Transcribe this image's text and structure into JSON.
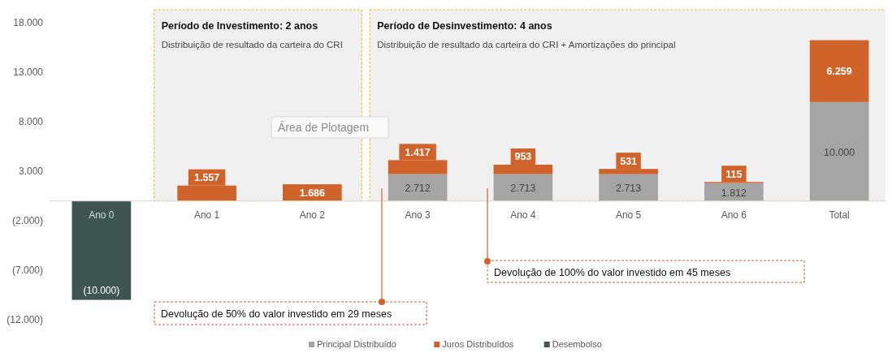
{
  "chart_data": {
    "type": "bar",
    "stacked": true,
    "categories": [
      "Ano 0",
      "Ano 1",
      "Ano 2",
      "Ano 3",
      "Ano 4",
      "Ano 5",
      "Ano 6",
      "Total"
    ],
    "series": [
      {
        "name": "Principal Distribuído",
        "color": "#a5a5a5",
        "values": [
          null,
          null,
          null,
          2712,
          2713,
          2713,
          1812,
          10000
        ],
        "value_labels": [
          null,
          null,
          null,
          "2.712",
          "2.713",
          "2.713",
          "1.812",
          "10.000"
        ]
      },
      {
        "name": "Juros Distribuídos",
        "color": "#d0632a",
        "values": [
          null,
          1557,
          1686,
          1417,
          953,
          531,
          115,
          6259
        ],
        "value_labels": [
          null,
          "1.557",
          "1.686",
          "1.417",
          "953",
          "531",
          "115",
          "6.259"
        ]
      },
      {
        "name": "Desembolso",
        "color": "#3f5552",
        "values": [
          -10000,
          null,
          null,
          null,
          null,
          null,
          null,
          null
        ],
        "value_labels": [
          "(10.000)",
          null,
          null,
          null,
          null,
          null,
          null,
          null
        ]
      }
    ],
    "ylim": [
      -12500,
      19500
    ],
    "yticks": [
      {
        "value": 18000,
        "label": "18.000"
      },
      {
        "value": 13000,
        "label": "13.000"
      },
      {
        "value": 8000,
        "label": "8.000"
      },
      {
        "value": 3000,
        "label": "3.000"
      },
      {
        "value": -2000,
        "label": "(2.000)"
      },
      {
        "value": -7000,
        "label": "(7.000)"
      },
      {
        "value": -12000,
        "label": "(12.000)"
      }
    ],
    "grid": false,
    "legend": "bottom",
    "bands": [
      {
        "axis": "x",
        "from": "Ano 1",
        "to": "Ano 2",
        "label": "Período de Investimento: 2 anos",
        "color": "#f0f0f0"
      },
      {
        "axis": "x",
        "from": "Ano 3",
        "to": "Total",
        "label": "Período de Desinvestimento: 4 anos",
        "color": "#f0f0f0"
      }
    ],
    "annotations": [
      "Distribuição de resultado da carteira do CRI",
      "Distribuição de resultado da carteira do CRI + Amortizações do principal",
      "Área de Plotagem",
      "Devolução de 50% do valor investido em 29 meses",
      "Devolução de 100% do valor investido em 45 meses"
    ]
  }
}
